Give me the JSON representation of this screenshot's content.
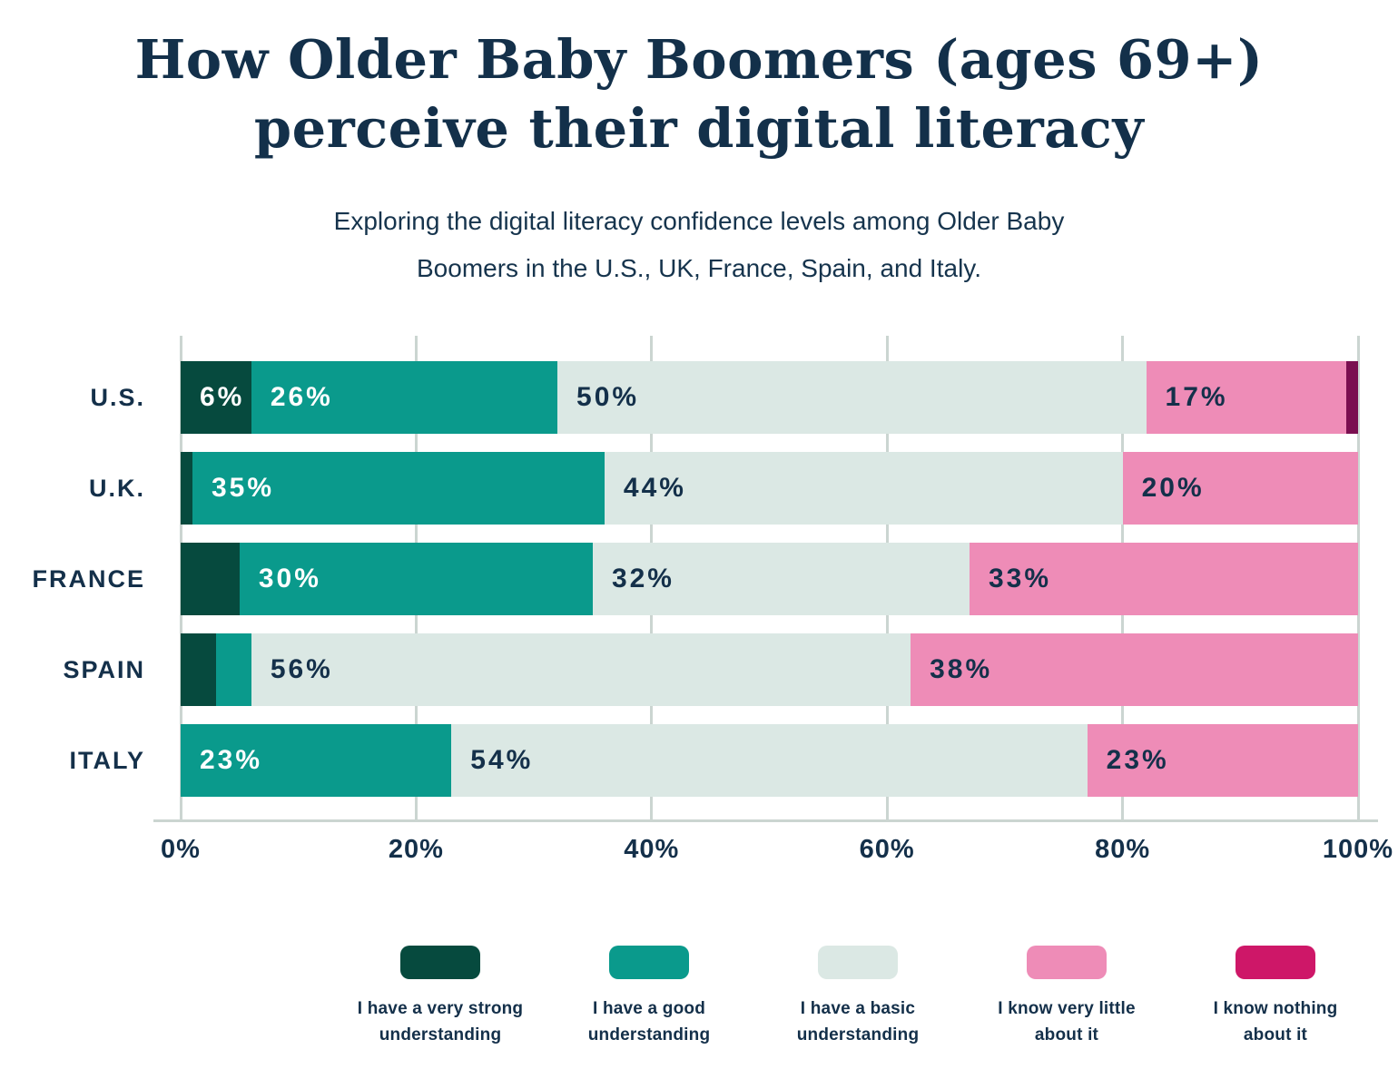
{
  "chart_data": {
    "type": "bar",
    "orientation": "horizontal-stacked",
    "title": "How Older Baby Boomers (ages 69+)\nperceive their digital literacy",
    "subtitle": "Exploring the digital literacy confidence levels among Older Baby\nBoomers in the U.S., UK, France, Spain, and Italy.",
    "categories": [
      "U.S.",
      "U.K.",
      "FRANCE",
      "SPAIN",
      "ITALY"
    ],
    "xticks": [
      "0%",
      "20%",
      "40%",
      "60%",
      "80%",
      "100%"
    ],
    "xlim": [
      0,
      100
    ],
    "grid": true,
    "legend_position": "bottom",
    "series": [
      {
        "name": "I have a very strong\nunderstanding",
        "color": "#064a3e",
        "label_color": "#ffffff",
        "values": [
          6,
          1,
          5,
          3,
          0
        ],
        "segment_labels": [
          "6%",
          "",
          "",
          "",
          ""
        ]
      },
      {
        "name": "I have a good\nunderstanding",
        "color": "#0a9a8c",
        "label_color": "#ffffff",
        "values": [
          26,
          35,
          30,
          3,
          23
        ],
        "segment_labels": [
          "26%",
          "35%",
          "30%",
          "",
          "23%"
        ]
      },
      {
        "name": "I have a basic\nunderstanding",
        "color": "#dbe8e4",
        "label_color": "#14304a",
        "values": [
          50,
          44,
          32,
          56,
          54
        ],
        "segment_labels": [
          "50%",
          "44%",
          "32%",
          "56%",
          "54%"
        ]
      },
      {
        "name": "I know very little\nabout it",
        "color": "#ee8cb7",
        "label_color": "#14304a",
        "values": [
          17,
          20,
          33,
          38,
          23
        ],
        "segment_labels": [
          "17%",
          "20%",
          "33%",
          "38%",
          "23%"
        ]
      },
      {
        "name": "I know nothing\nabout it",
        "color": "#7a0f50",
        "legend_color": "#ce1768",
        "label_color": "#ffffff",
        "values": [
          1,
          0,
          0,
          0,
          0
        ],
        "segment_labels": [
          "",
          "",
          "",
          "",
          ""
        ]
      }
    ],
    "colors": {
      "text": "#14304a",
      "grid": "#cbd5d1",
      "background": "#ffffff"
    }
  }
}
